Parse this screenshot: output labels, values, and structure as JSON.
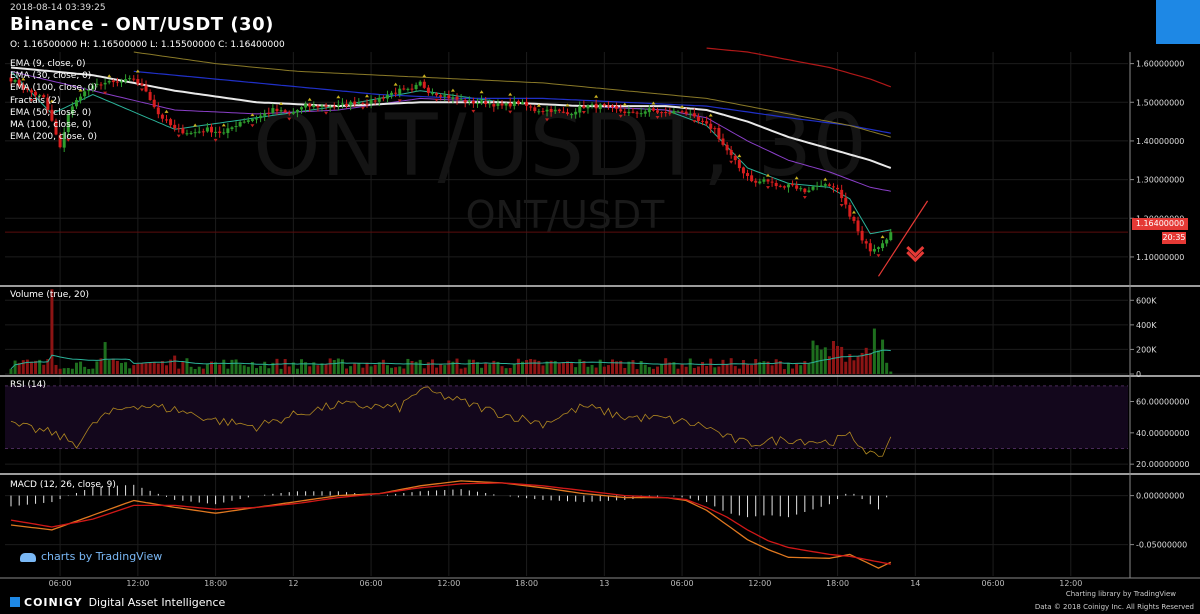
{
  "header": {
    "datetime": "2018-08-14 03:39:25",
    "title": "Binance - ONT/USDT (30)",
    "ohlc": "O: 1.16500000 H: 1.16500000 L: 1.15500000 C: 1.16400000"
  },
  "watermark": {
    "big": "ONT/USDT, 30",
    "small": "ONT/USDT"
  },
  "indicators": [
    "EMA (9, close, 0)",
    "EMA (30, close, 0)",
    "EMA (100, close, 0)",
    "Fractals (2)",
    "EMA (50, close, 0)",
    "MA (100, close, 0)",
    "EMA (200, close, 0)"
  ],
  "last_price": {
    "label": "1.16400000",
    "countdown": "20:35"
  },
  "panes": {
    "volume": "Volume (true, 20)",
    "rsi": "RSI (14)",
    "macd": "MACD (12, 26, close, 9)"
  },
  "footer": {
    "tradingview": "charts by TradingView",
    "brand": "COINIGY",
    "tagline": "Digital Asset Intelligence",
    "charting": "Charting library by",
    "charting_brand": "TradingView",
    "data": "Data © 2018",
    "rights": "Coinigy Inc. All Rights Reserved"
  },
  "colors": {
    "up": "#2e9e2e",
    "down": "#d81e1e",
    "ema9": "#2bb39a",
    "ema30": "#8a3fc8",
    "ema100": "#e8e8e8",
    "ema50": "#2030c8",
    "ma100": "#8a7a28",
    "ema200": "#b01818",
    "rsi": "#b08820",
    "macd": "#e07820",
    "signal": "#d01818",
    "accent": "#e53935",
    "brand": "#1e88e5"
  },
  "chart_data": [
    {
      "type": "candlestick",
      "pane": "price",
      "ylim": [
        1.03,
        1.63
      ],
      "yticks": [
        1.1,
        1.2,
        1.3,
        1.4,
        1.5,
        1.6
      ],
      "ytick_labels": [
        "1.10000000",
        "1.20000000",
        "1.30000000",
        "1.40000000",
        "1.50000000",
        "1.60000000"
      ],
      "x_labels": [
        "06:00",
        "12:00",
        "18:00",
        "12",
        "06:00",
        "12:00",
        "18:00",
        "13",
        "06:00",
        "12:00",
        "18:00",
        "14",
        "06:00",
        "12:00"
      ],
      "close_points": [
        [
          0,
          1.56
        ],
        [
          4,
          1.53
        ],
        [
          8,
          1.51
        ],
        [
          10,
          1.45
        ],
        [
          12,
          1.38
        ],
        [
          14,
          1.47
        ],
        [
          17,
          1.52
        ],
        [
          22,
          1.55
        ],
        [
          26,
          1.55
        ],
        [
          30,
          1.56
        ],
        [
          33,
          1.53
        ],
        [
          36,
          1.47
        ],
        [
          40,
          1.43
        ],
        [
          44,
          1.42
        ],
        [
          48,
          1.43
        ],
        [
          52,
          1.42
        ],
        [
          56,
          1.45
        ],
        [
          60,
          1.46
        ],
        [
          64,
          1.48
        ],
        [
          68,
          1.47
        ],
        [
          72,
          1.49
        ],
        [
          76,
          1.49
        ],
        [
          80,
          1.49
        ],
        [
          84,
          1.5
        ],
        [
          88,
          1.5
        ],
        [
          92,
          1.52
        ],
        [
          95,
          1.53
        ],
        [
          98,
          1.53
        ],
        [
          100,
          1.55
        ],
        [
          102,
          1.53
        ],
        [
          105,
          1.52
        ],
        [
          108,
          1.51
        ],
        [
          112,
          1.5
        ],
        [
          116,
          1.5
        ],
        [
          120,
          1.49
        ],
        [
          124,
          1.5
        ],
        [
          128,
          1.48
        ],
        [
          132,
          1.48
        ],
        [
          136,
          1.47
        ],
        [
          140,
          1.49
        ],
        [
          144,
          1.49
        ],
        [
          148,
          1.48
        ],
        [
          152,
          1.47
        ],
        [
          156,
          1.48
        ],
        [
          160,
          1.47
        ],
        [
          164,
          1.48
        ],
        [
          168,
          1.45
        ],
        [
          172,
          1.43
        ],
        [
          174,
          1.39
        ],
        [
          176,
          1.36
        ],
        [
          178,
          1.33
        ],
        [
          180,
          1.31
        ],
        [
          182,
          1.29
        ],
        [
          184,
          1.3
        ],
        [
          186,
          1.29
        ],
        [
          188,
          1.28
        ],
        [
          190,
          1.29
        ],
        [
          192,
          1.28
        ],
        [
          194,
          1.27
        ],
        [
          196,
          1.28
        ],
        [
          198,
          1.29
        ],
        [
          200,
          1.28
        ],
        [
          202,
          1.27
        ],
        [
          204,
          1.23
        ],
        [
          206,
          1.19
        ],
        [
          208,
          1.14
        ],
        [
          210,
          1.12
        ],
        [
          212,
          1.13
        ],
        [
          214,
          1.15
        ],
        [
          215,
          1.164
        ]
      ],
      "series": [
        {
          "name": "EMA (9, close, 0)",
          "points": [
            [
              0,
              1.58
            ],
            [
              10,
              1.47
            ],
            [
              20,
              1.52
            ],
            [
              40,
              1.43
            ],
            [
              60,
              1.46
            ],
            [
              80,
              1.49
            ],
            [
              100,
              1.53
            ],
            [
              120,
              1.5
            ],
            [
              140,
              1.49
            ],
            [
              160,
              1.48
            ],
            [
              170,
              1.44
            ],
            [
              180,
              1.33
            ],
            [
              190,
              1.29
            ],
            [
              200,
              1.28
            ],
            [
              205,
              1.25
            ],
            [
              210,
              1.16
            ],
            [
              215,
              1.17
            ]
          ]
        },
        {
          "name": "EMA (30, close, 0)",
          "points": [
            [
              0,
              1.58
            ],
            [
              20,
              1.53
            ],
            [
              40,
              1.48
            ],
            [
              60,
              1.47
            ],
            [
              80,
              1.48
            ],
            [
              100,
              1.51
            ],
            [
              120,
              1.5
            ],
            [
              140,
              1.49
            ],
            [
              160,
              1.48
            ],
            [
              170,
              1.46
            ],
            [
              180,
              1.4
            ],
            [
              190,
              1.35
            ],
            [
              200,
              1.32
            ],
            [
              210,
              1.28
            ],
            [
              215,
              1.27
            ]
          ]
        },
        {
          "name": "EMA (100, close, 0)",
          "points": [
            [
              0,
              1.59
            ],
            [
              20,
              1.57
            ],
            [
              40,
              1.53
            ],
            [
              60,
              1.5
            ],
            [
              80,
              1.49
            ],
            [
              100,
              1.5
            ],
            [
              120,
              1.5
            ],
            [
              140,
              1.49
            ],
            [
              160,
              1.49
            ],
            [
              170,
              1.48
            ],
            [
              180,
              1.45
            ],
            [
              190,
              1.41
            ],
            [
              200,
              1.38
            ],
            [
              210,
              1.35
            ],
            [
              215,
              1.33
            ]
          ]
        },
        {
          "name": "EMA (50, close, 0)",
          "points": [
            [
              30,
              1.58
            ],
            [
              50,
              1.56
            ],
            [
              70,
              1.54
            ],
            [
              90,
              1.52
            ],
            [
              110,
              1.51
            ],
            [
              130,
              1.51
            ],
            [
              150,
              1.5
            ],
            [
              170,
              1.49
            ],
            [
              190,
              1.46
            ],
            [
              205,
              1.44
            ],
            [
              215,
              1.42
            ]
          ]
        },
        {
          "name": "MA (100, close, 0)",
          "points": [
            [
              30,
              1.63
            ],
            [
              50,
              1.6
            ],
            [
              70,
              1.58
            ],
            [
              90,
              1.57
            ],
            [
              110,
              1.56
            ],
            [
              130,
              1.55
            ],
            [
              150,
              1.53
            ],
            [
              170,
              1.51
            ],
            [
              190,
              1.47
            ],
            [
              205,
              1.44
            ],
            [
              215,
              1.41
            ]
          ]
        },
        {
          "name": "EMA (200, close, 0)",
          "points": [
            [
              170,
              1.64
            ],
            [
              180,
              1.63
            ],
            [
              190,
              1.61
            ],
            [
              200,
              1.59
            ],
            [
              210,
              1.56
            ],
            [
              215,
              1.54
            ]
          ]
        }
      ]
    },
    {
      "type": "bar",
      "pane": "volume",
      "ylim": [
        0,
        700000
      ],
      "yticks": [
        0,
        200000,
        400000,
        600000
      ],
      "ytick_labels": [
        "0",
        "200K",
        "400K",
        "600K"
      ]
    },
    {
      "type": "line",
      "pane": "rsi",
      "ylim": [
        15,
        75
      ],
      "yticks": [
        20,
        40,
        60
      ],
      "ytick_labels": [
        "20.00000000",
        "40.00000000",
        "60.00000000"
      ],
      "bands": [
        30,
        70
      ]
    },
    {
      "type": "line",
      "pane": "macd",
      "ylim": [
        -0.08,
        0.02
      ],
      "yticks": [
        0,
        -0.05
      ],
      "ytick_labels": [
        "0.00000000",
        "-0.05000000"
      ],
      "series": [
        {
          "name": "MACD",
          "points": [
            [
              0,
              -0.03
            ],
            [
              10,
              -0.035
            ],
            [
              20,
              -0.02
            ],
            [
              30,
              -0.005
            ],
            [
              40,
              -0.012
            ],
            [
              50,
              -0.018
            ],
            [
              60,
              -0.012
            ],
            [
              70,
              -0.006
            ],
            [
              80,
              0.0
            ],
            [
              90,
              0.002
            ],
            [
              100,
              0.01
            ],
            [
              110,
              0.015
            ],
            [
              120,
              0.013
            ],
            [
              130,
              0.008
            ],
            [
              140,
              0.002
            ],
            [
              150,
              -0.002
            ],
            [
              160,
              -0.002
            ],
            [
              165,
              -0.005
            ],
            [
              170,
              -0.015
            ],
            [
              175,
              -0.03
            ],
            [
              180,
              -0.045
            ],
            [
              185,
              -0.055
            ],
            [
              190,
              -0.063
            ],
            [
              200,
              -0.064
            ],
            [
              205,
              -0.06
            ],
            [
              210,
              -0.07
            ],
            [
              212,
              -0.074
            ],
            [
              215,
              -0.068
            ]
          ]
        },
        {
          "name": "Signal",
          "points": [
            [
              0,
              -0.025
            ],
            [
              10,
              -0.032
            ],
            [
              20,
              -0.024
            ],
            [
              30,
              -0.01
            ],
            [
              40,
              -0.01
            ],
            [
              50,
              -0.014
            ],
            [
              60,
              -0.012
            ],
            [
              70,
              -0.008
            ],
            [
              80,
              -0.002
            ],
            [
              90,
              0.002
            ],
            [
              100,
              0.008
            ],
            [
              110,
              0.012
            ],
            [
              120,
              0.013
            ],
            [
              130,
              0.01
            ],
            [
              140,
              0.005
            ],
            [
              150,
              0.0
            ],
            [
              160,
              -0.002
            ],
            [
              165,
              -0.004
            ],
            [
              170,
              -0.012
            ],
            [
              175,
              -0.022
            ],
            [
              180,
              -0.035
            ],
            [
              185,
              -0.046
            ],
            [
              190,
              -0.053
            ],
            [
              200,
              -0.06
            ],
            [
              205,
              -0.062
            ],
            [
              210,
              -0.066
            ],
            [
              215,
              -0.07
            ]
          ]
        }
      ]
    }
  ]
}
